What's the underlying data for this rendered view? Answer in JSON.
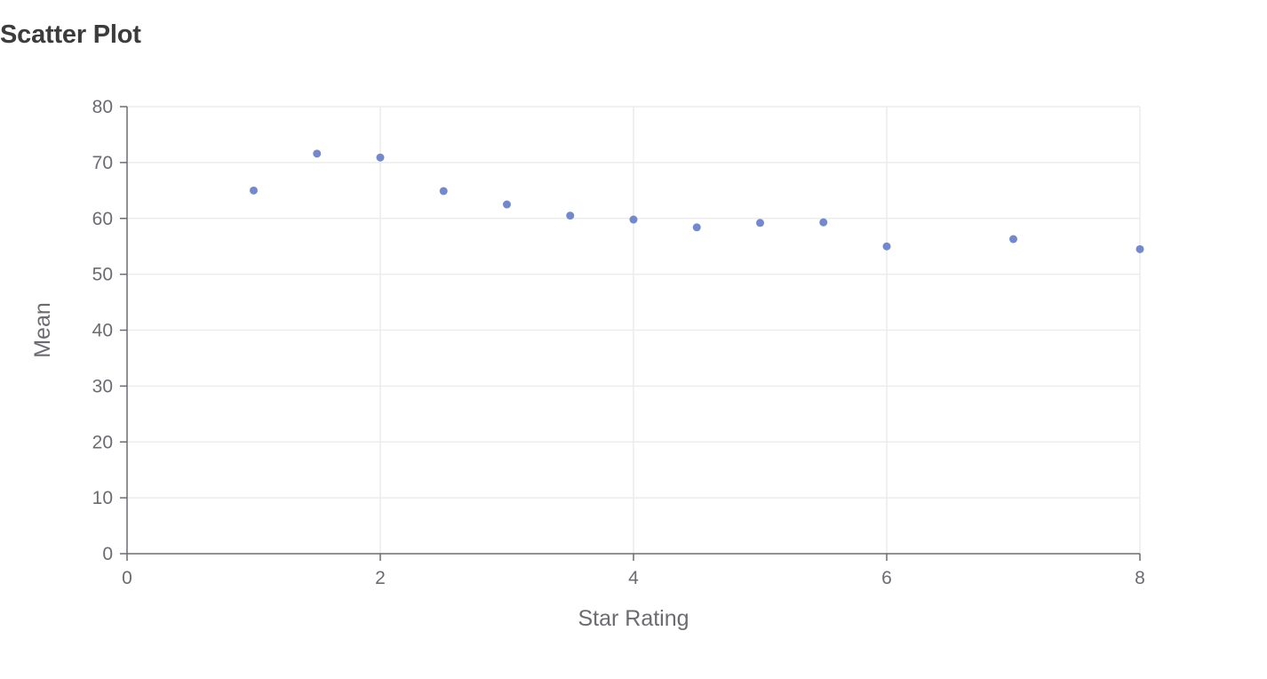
{
  "chart_data": {
    "type": "scatter",
    "title": "Scatter Plot",
    "xlabel": "Star Rating",
    "ylabel": "Mean",
    "xlim": [
      0,
      8
    ],
    "ylim": [
      0,
      80
    ],
    "x_ticks": [
      0,
      2,
      4,
      6,
      8
    ],
    "y_ticks": [
      0,
      10,
      20,
      30,
      40,
      50,
      60,
      70,
      80
    ],
    "grid": true,
    "point_color": "#7389cc",
    "series": [
      {
        "points": [
          {
            "x": 1.0,
            "y": 65.0
          },
          {
            "x": 1.5,
            "y": 71.6
          },
          {
            "x": 2.0,
            "y": 70.9
          },
          {
            "x": 2.5,
            "y": 64.9
          },
          {
            "x": 3.0,
            "y": 62.5
          },
          {
            "x": 3.5,
            "y": 60.5
          },
          {
            "x": 4.0,
            "y": 59.8
          },
          {
            "x": 4.5,
            "y": 58.4
          },
          {
            "x": 5.0,
            "y": 59.2
          },
          {
            "x": 5.5,
            "y": 59.3
          },
          {
            "x": 6.0,
            "y": 55.0
          },
          {
            "x": 7.0,
            "y": 56.3
          },
          {
            "x": 8.0,
            "y": 54.5
          }
        ]
      }
    ]
  }
}
